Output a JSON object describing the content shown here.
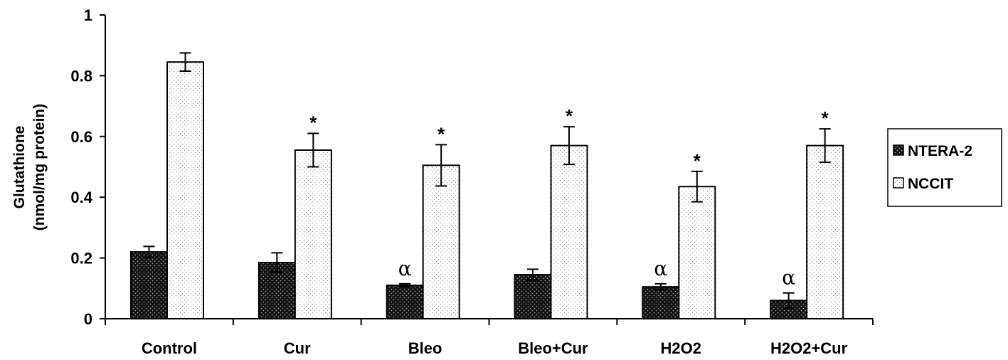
{
  "chart_data": {
    "type": "bar",
    "categories": [
      "Control",
      "Cur",
      "Bleo",
      "Bleo+Cur",
      "H2O2",
      "H2O2+Cur"
    ],
    "series": [
      {
        "name": "NTERA-2",
        "values": [
          0.22,
          0.185,
          0.11,
          0.145,
          0.105,
          0.06
        ],
        "errors": [
          0.018,
          0.032,
          0.005,
          0.018,
          0.01,
          0.025
        ],
        "annotations": [
          "",
          "",
          "α",
          "",
          "α",
          "α"
        ],
        "color": "#1a1a1a",
        "pattern": "dark-dotted"
      },
      {
        "name": "NCCIT",
        "values": [
          0.845,
          0.555,
          0.505,
          0.57,
          0.435,
          0.57
        ],
        "errors": [
          0.03,
          0.055,
          0.068,
          0.062,
          0.05,
          0.055
        ],
        "annotations": [
          "",
          "*",
          "*",
          "*",
          "*",
          "*"
        ],
        "color": "#ffffff",
        "pattern": "light-dotted"
      }
    ],
    "ylabel": "Glutathione",
    "ylabel_line2": "(nmol/mg protein)",
    "xlabel": "",
    "ylim": [
      0,
      1
    ],
    "yticks": [
      0,
      0.2,
      0.4,
      0.6,
      0.8,
      1
    ],
    "ytick_labels": [
      "0",
      "0.2",
      "0.4",
      "0.6",
      "0.8",
      "1"
    ],
    "grid": false,
    "legend_position": "right"
  }
}
